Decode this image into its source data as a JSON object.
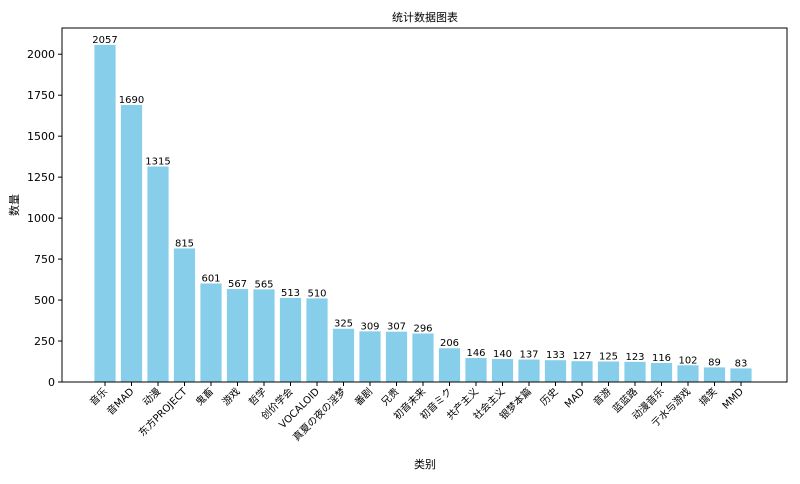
{
  "chart_data": {
    "type": "bar",
    "title": "统计数据图表",
    "xlabel": "类别",
    "ylabel": "数量",
    "ylim": [
      0,
      2160
    ],
    "yticks": [
      0,
      250,
      500,
      750,
      1000,
      1250,
      1500,
      1750,
      2000
    ],
    "grid": false,
    "bar_color": "#87CEEB",
    "categories": [
      "音乐",
      "音MAD",
      "动漫",
      "东方PROJECT",
      "鬼畜",
      "游戏",
      "哲学",
      "创价学会",
      "VOCALOID",
      "真夏の夜の淫梦",
      "番剧",
      "兄贵",
      "初音未来",
      "初音ミク",
      "共产主义",
      "社会主义",
      "银梦本篇",
      "历史",
      "MAD",
      "音游",
      "蓝蓝路",
      "动漫音乐",
      "亍水与游戏",
      "搞笑",
      "MMD"
    ],
    "values": [
      2057,
      1690,
      1315,
      815,
      601,
      567,
      565,
      513,
      510,
      325,
      309,
      307,
      296,
      206,
      146,
      140,
      137,
      133,
      127,
      125,
      123,
      116,
      102,
      89,
      83
    ]
  }
}
